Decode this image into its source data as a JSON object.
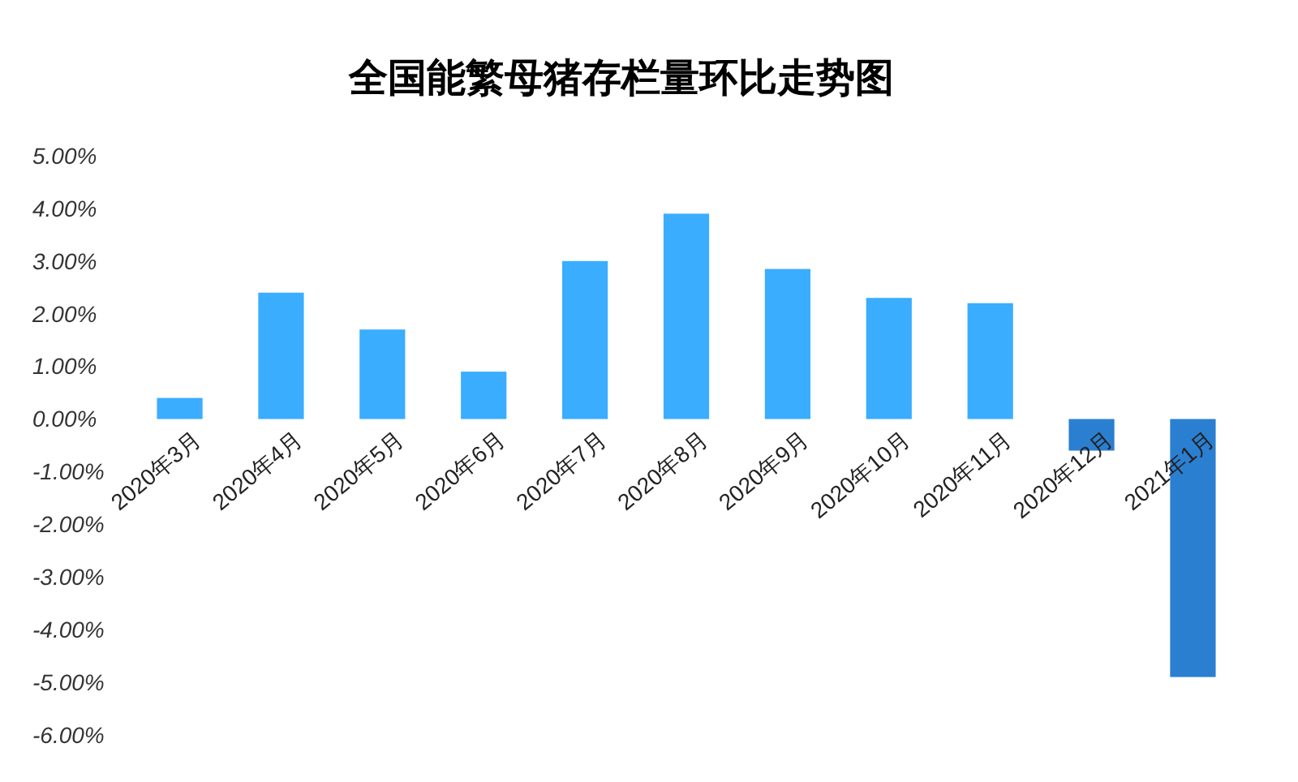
{
  "chart_data": {
    "type": "bar",
    "title": "全国能繁母猪存栏量环比走势图",
    "categories": [
      "2020年3月",
      "2020年4月",
      "2020年5月",
      "2020年6月",
      "2020年7月",
      "2020年8月",
      "2020年9月",
      "2020年10月",
      "2020年11月",
      "2020年12月",
      "2021年1月"
    ],
    "values": [
      0.4,
      2.4,
      1.7,
      0.9,
      3.0,
      3.9,
      2.85,
      2.3,
      2.2,
      -0.6,
      -4.9
    ],
    "colors": [
      "#3aadff",
      "#3aadff",
      "#3aadff",
      "#3aadff",
      "#3aadff",
      "#3aadff",
      "#3aadff",
      "#3aadff",
      "#3aadff",
      "#2b7fd1",
      "#2b7fd1"
    ],
    "ylim": [
      -6,
      5
    ],
    "yticks": [
      {
        "value": -6,
        "label": "-6.00%"
      },
      {
        "value": -5,
        "label": "-5.00%"
      },
      {
        "value": -4,
        "label": "-4.00%"
      },
      {
        "value": -3,
        "label": "-3.00%"
      },
      {
        "value": -2,
        "label": "-2.00%"
      },
      {
        "value": -1,
        "label": "-1.00%"
      },
      {
        "value": 0,
        "label": "0.00%"
      },
      {
        "value": 1,
        "label": "1.00%"
      },
      {
        "value": 2,
        "label": "2.00%"
      },
      {
        "value": 3,
        "label": "3.00%"
      },
      {
        "value": 4,
        "label": "4.00%"
      },
      {
        "value": 5,
        "label": "5.00%"
      }
    ]
  }
}
